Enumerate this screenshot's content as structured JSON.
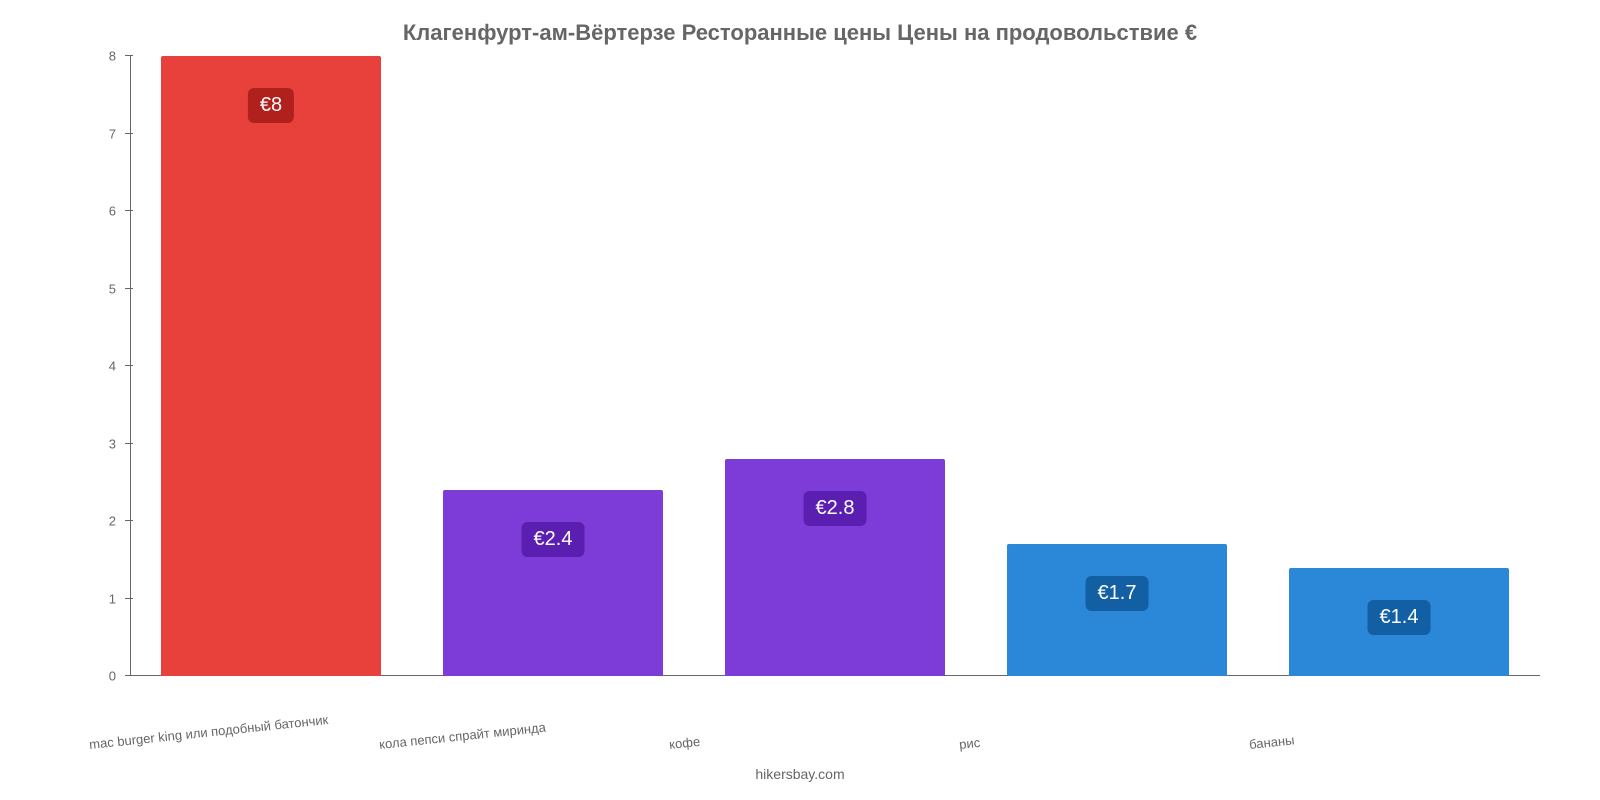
{
  "chart": {
    "type": "bar",
    "title": "Клагенфурт-ам-Вёртерзе Ресторанные цены Цены на продовольствие €",
    "title_fontsize": 22,
    "title_color": "#666666",
    "attribution": "hikersbay.com",
    "attribution_color": "#666666",
    "background_color": "#ffffff",
    "axis_color": "#666666",
    "tick_label_color": "#666666",
    "tick_label_fontsize": 13,
    "x_label_fontsize": 13,
    "x_label_rotation_deg": -6,
    "ylim": [
      0,
      8
    ],
    "ytick_step": 1,
    "yticks": [
      0,
      1,
      2,
      3,
      4,
      5,
      6,
      7,
      8
    ],
    "bar_width_pct": 78,
    "value_label_fontsize": 20,
    "value_label_text_color": "#ffffff",
    "value_label_radius": 6,
    "categories": [
      "mac burger king или подобный батончик",
      "кола пепси спрайт миринда",
      "кофе",
      "рис",
      "бананы"
    ],
    "values": [
      8,
      2.4,
      2.8,
      1.7,
      1.4
    ],
    "value_labels": [
      "€8",
      "€2.4",
      "€2.8",
      "€1.7",
      "€1.4"
    ],
    "bar_colors": [
      "#e8403b",
      "#7d3bd8",
      "#7d3bd8",
      "#2b88d8",
      "#2b88d8"
    ],
    "value_label_bg_colors": [
      "#b0201c",
      "#5a1fb0",
      "#5a1fb0",
      "#125fa3",
      "#125fa3"
    ]
  }
}
